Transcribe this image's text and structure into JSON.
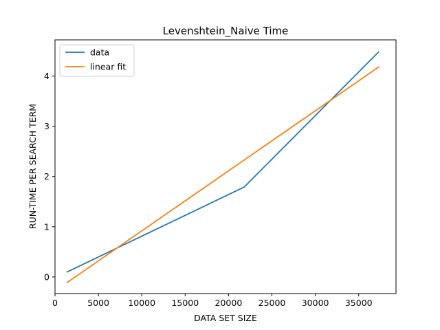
{
  "chart_data": {
    "type": "line",
    "title": "Levenshtein_Naive Time",
    "xlabel": "DATA SET SIZE",
    "ylabel": "RUN-TIME PER SEARCH TERM",
    "xlim": [
      0,
      39300
    ],
    "ylim": [
      -0.33,
      4.72
    ],
    "xticks": [
      0,
      5000,
      10000,
      15000,
      20000,
      25000,
      30000,
      35000
    ],
    "yticks": [
      0,
      1,
      2,
      3,
      4
    ],
    "grid": false,
    "legend_position": "upper-left",
    "series": [
      {
        "name": "data",
        "color": "#1f77b4",
        "x": [
          1400,
          21800,
          37300
        ],
        "y": [
          0.1,
          1.79,
          4.48
        ]
      },
      {
        "name": "linear fit",
        "color": "#ff7f0e",
        "x": [
          1400,
          37300
        ],
        "y": [
          -0.11,
          4.18
        ]
      }
    ]
  }
}
